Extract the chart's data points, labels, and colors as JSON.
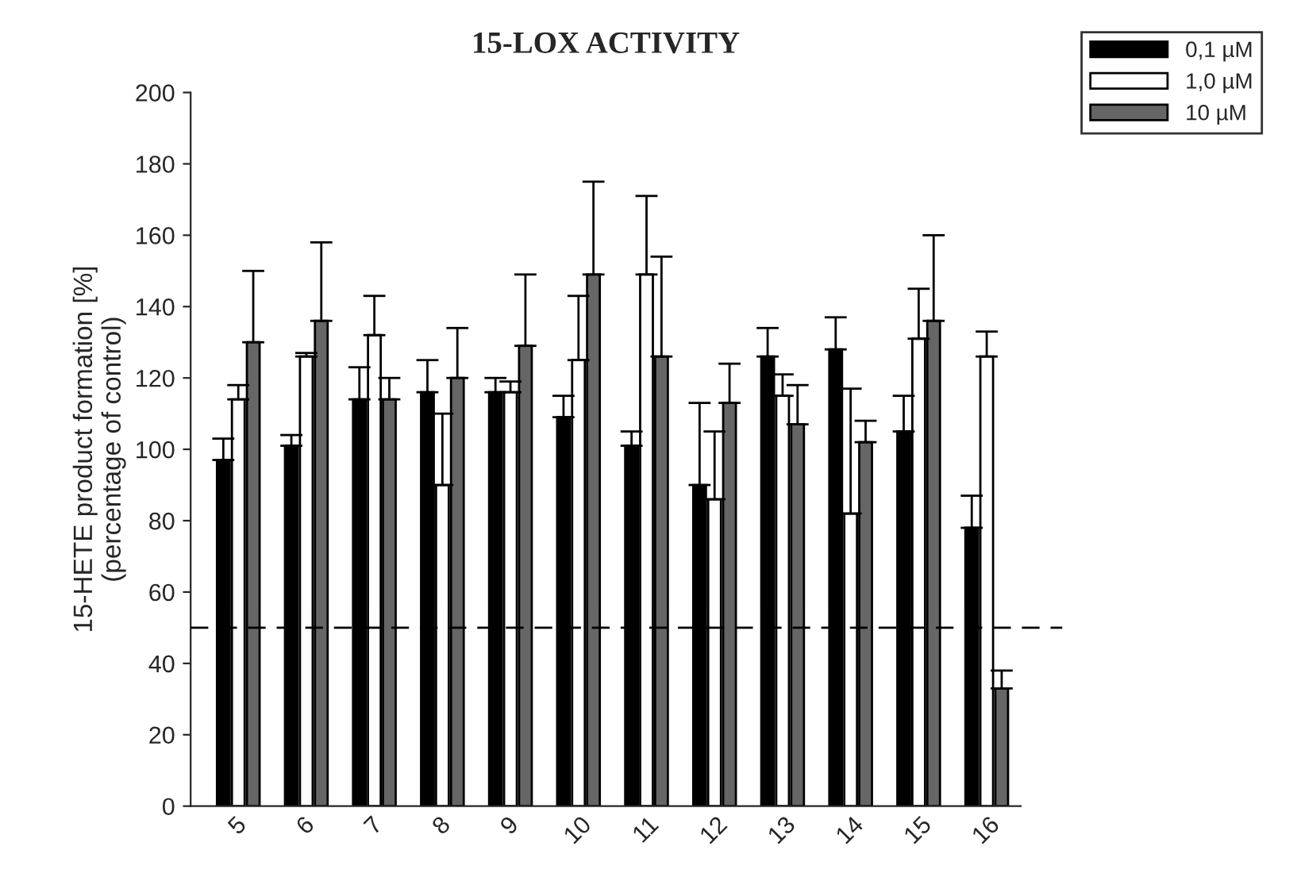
{
  "chart_data": {
    "type": "bar",
    "title": "15-LOX ACTIVITY",
    "ylabel": "15-HETE product formation [%]\n(percentage of control)",
    "categories": [
      "5",
      "6",
      "7",
      "8",
      "9",
      "10",
      "11",
      "12",
      "13",
      "14",
      "15",
      "16"
    ],
    "series": [
      {
        "name": "0,1 µM",
        "color": "#000000",
        "values": [
          97,
          101,
          114,
          116,
          116,
          109,
          101,
          90,
          126,
          128,
          105,
          78
        ],
        "errors": [
          [
            97,
            103
          ],
          [
            101,
            104
          ],
          [
            114,
            123
          ],
          [
            116,
            125
          ],
          [
            116,
            120
          ],
          [
            109,
            115
          ],
          [
            101,
            105
          ],
          [
            90,
            113
          ],
          [
            126,
            134
          ],
          [
            128,
            137
          ],
          [
            105,
            115
          ],
          [
            78,
            87
          ]
        ]
      },
      {
        "name": "1,0 µM",
        "color": "#ffffff",
        "values": [
          114,
          126,
          132,
          90,
          116,
          125,
          149,
          86,
          115,
          82,
          131,
          126
        ],
        "errors": [
          [
            114,
            118
          ],
          [
            126,
            127
          ],
          [
            132,
            143
          ],
          [
            90,
            110
          ],
          [
            116,
            119
          ],
          [
            125,
            143
          ],
          [
            149,
            171
          ],
          [
            86,
            105
          ],
          [
            115,
            121
          ],
          [
            82,
            117
          ],
          [
            131,
            145
          ],
          [
            126,
            133
          ]
        ]
      },
      {
        "name": "10 µM",
        "color": "#666666",
        "values": [
          130,
          136,
          114,
          120,
          129,
          149,
          126,
          113,
          107,
          102,
          136,
          33
        ],
        "errors": [
          [
            130,
            150
          ],
          [
            136,
            158
          ],
          [
            114,
            120
          ],
          [
            120,
            134
          ],
          [
            129,
            149
          ],
          [
            149,
            175
          ],
          [
            126,
            154
          ],
          [
            113,
            124
          ],
          [
            107,
            118
          ],
          [
            102,
            108
          ],
          [
            136,
            160
          ],
          [
            33,
            38
          ]
        ]
      }
    ],
    "ylim": [
      0,
      200
    ],
    "yticks": [
      0,
      20,
      40,
      60,
      80,
      100,
      120,
      140,
      160,
      180,
      200
    ],
    "ref_lines": [
      {
        "axis": "y",
        "value": 50,
        "color": "#000000",
        "line_style": "dashed"
      }
    ],
    "grid": false,
    "legend": "top right"
  }
}
